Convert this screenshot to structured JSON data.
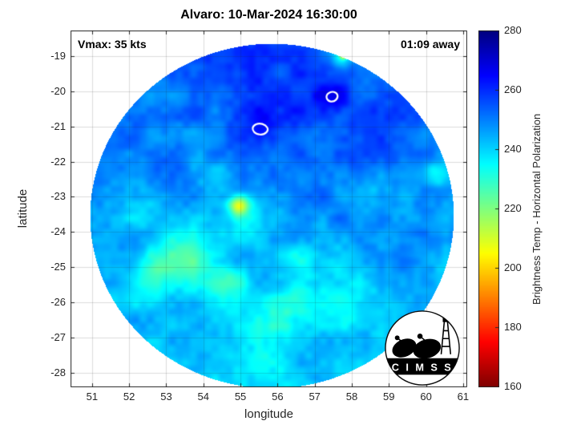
{
  "annotations": {
    "vmax": "Vmax: 35 kts",
    "time_away": "01:09 away"
  },
  "logo": {
    "text": "C I M S S"
  },
  "chart_data": {
    "type": "heatmap",
    "title": "Alvaro: 10-Mar-2024 16:30:00",
    "xlabel": "longitude",
    "ylabel": "latitude",
    "xlim": [
      50.42,
      61.11
    ],
    "ylim": [
      -28.42,
      -18.27
    ],
    "xticks": [
      51,
      52,
      53,
      54,
      55,
      56,
      57,
      58,
      59,
      60,
      61
    ],
    "yticks": [
      -19,
      -20,
      -21,
      -22,
      -23,
      -24,
      -25,
      -26,
      -27,
      -28
    ],
    "grid": true,
    "annotations": [
      {
        "text": "Vmax: 35 kts",
        "corner": "top-left"
      },
      {
        "text": "01:09 away",
        "corner": "top-right"
      }
    ],
    "colorbar": {
      "label": "Brightness Temp - Horizontal Polarization",
      "ticks": [
        160,
        180,
        200,
        220,
        240,
        260,
        280
      ],
      "range": [
        160,
        280
      ],
      "colormap": "jet-reversed-high-is-blue",
      "stops_top_to_bottom": [
        "#000080",
        "#0000ff",
        "#00ffff",
        "#00ff00",
        "#ffff00",
        "#ff0000",
        "#800000"
      ]
    },
    "swath": {
      "center_lon": 55.85,
      "center_lat": -23.55,
      "radius_deg": 4.9,
      "base_temp_K": 246,
      "lat_gradient": 1.1
    },
    "features": [
      {
        "lon": 56.0,
        "lat": -19.8,
        "sigma": 2.0,
        "dT": 8
      },
      {
        "lon": 58.9,
        "lat": -21.0,
        "sigma": 1.4,
        "dT": 6
      },
      {
        "lon": 52.2,
        "lat": -21.3,
        "sigma": 1.1,
        "dT": 4
      },
      {
        "lon": 55.9,
        "lat": -20.8,
        "sigma": 0.8,
        "dT": 5
      },
      {
        "lon": 57.45,
        "lat": -20.2,
        "sigma": 0.45,
        "dT": 9
      },
      {
        "lon": 55.55,
        "lat": -21.1,
        "sigma": 0.45,
        "dT": 7
      },
      {
        "lon": 56.9,
        "lat": -23.2,
        "sigma": 1.3,
        "dT": 3
      },
      {
        "lon": 59.0,
        "lat": -24.3,
        "sigma": 1.1,
        "dT": 3
      },
      {
        "lon": 54.95,
        "lat": -23.25,
        "sigma": 0.26,
        "dT": -30
      },
      {
        "lon": 55.15,
        "lat": -23.5,
        "sigma": 0.55,
        "dT": -12
      },
      {
        "lon": 53.35,
        "lat": -24.75,
        "sigma": 0.85,
        "dT": -18
      },
      {
        "lon": 52.55,
        "lat": -25.35,
        "sigma": 0.65,
        "dT": -10
      },
      {
        "lon": 54.6,
        "lat": -25.6,
        "sigma": 0.7,
        "dT": -13
      },
      {
        "lon": 56.3,
        "lat": -26.35,
        "sigma": 0.75,
        "dT": -9
      },
      {
        "lon": 57.4,
        "lat": -25.3,
        "sigma": 0.85,
        "dT": -7
      },
      {
        "lon": 58.15,
        "lat": -26.1,
        "sigma": 0.6,
        "dT": -7
      },
      {
        "lon": 55.6,
        "lat": -27.1,
        "sigma": 0.8,
        "dT": -7
      },
      {
        "lon": 60.25,
        "lat": -22.3,
        "sigma": 0.35,
        "dT": -13
      },
      {
        "lon": 52.3,
        "lat": -23.2,
        "sigma": 0.7,
        "dT": -7
      },
      {
        "lon": 57.7,
        "lat": -19.05,
        "sigma": 0.28,
        "dT": -24
      },
      {
        "lon": 57.78,
        "lat": -18.98,
        "sigma": 0.1,
        "dT": -38
      },
      {
        "lon": 54.3,
        "lat": -22.3,
        "sigma": 0.6,
        "dT": -6
      },
      {
        "lon": 56.6,
        "lat": -24.6,
        "sigma": 0.5,
        "dT": -8
      },
      {
        "lon": 58.6,
        "lat": -22.9,
        "sigma": 0.45,
        "dT": -6
      }
    ],
    "contours": [
      {
        "points": [
          [
            57.3,
            -20.12
          ],
          [
            57.44,
            -20.0
          ],
          [
            57.6,
            -20.04
          ],
          [
            57.63,
            -20.18
          ],
          [
            57.52,
            -20.3
          ],
          [
            57.35,
            -20.28
          ]
        ]
      },
      {
        "points": [
          [
            55.34,
            -20.98
          ],
          [
            55.5,
            -20.9
          ],
          [
            55.68,
            -20.96
          ],
          [
            55.76,
            -21.1
          ],
          [
            55.63,
            -21.24
          ],
          [
            55.42,
            -21.22
          ],
          [
            55.32,
            -21.1
          ]
        ]
      }
    ]
  }
}
